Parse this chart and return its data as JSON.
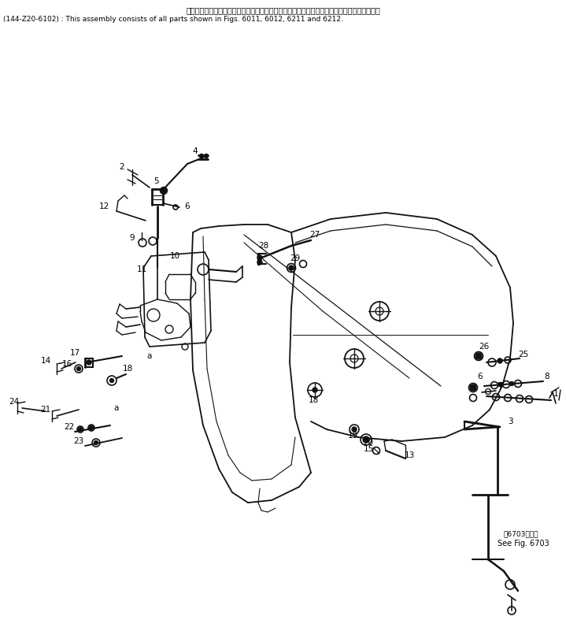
{
  "title_jp": "このアセンブリの構成部品は第６０１１、６０１２、６２１１および第６２１２図を含みます",
  "title_en": "(144-Z20-6102) : This assembly consists of all parts shown in Figs. 6011, 6012, 6211 and 6212.",
  "see_fig_jp": "第6703図参照",
  "see_fig_en": "See Fig. 6703",
  "bg_color": "#ffffff",
  "line_color": "#111111",
  "text_color": "#000000",
  "label_fontsize": 7.5,
  "title_fontsize": 7.0
}
